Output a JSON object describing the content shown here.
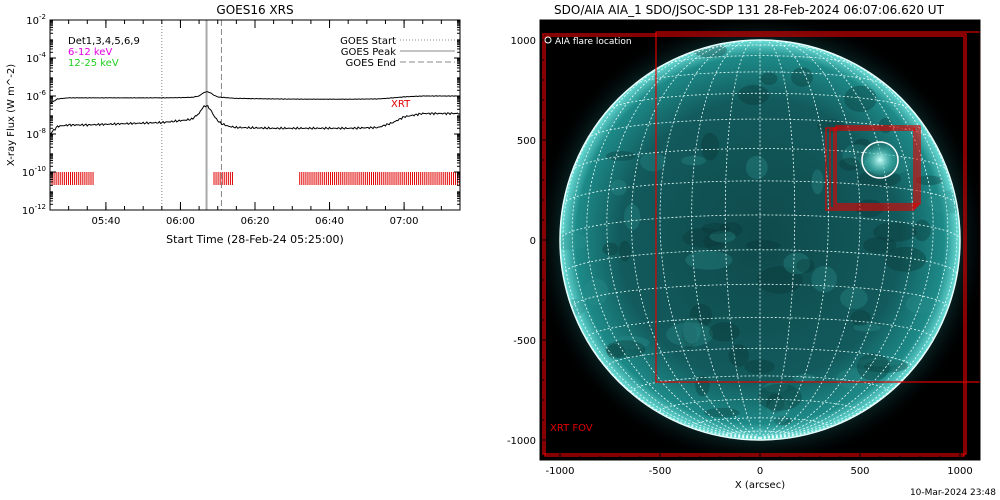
{
  "chart_data": [
    {
      "type": "line",
      "title": "GOES16 XRS",
      "xlabel": "Start Time (28-Feb-24 05:25:00)",
      "ylabel": "X-ray Flux (W m^-2)",
      "y_scale": "log",
      "ylim": [
        1e-12,
        0.01
      ],
      "xlim_minutes": [
        0,
        110
      ],
      "x_tick_labels": [
        "05:40",
        "06:00",
        "06:20",
        "06:40",
        "07:00"
      ],
      "y_tick_labels": [
        "10^-2",
        "10^-4",
        "10^-6",
        "10^-8",
        "10^-10",
        "10^-12"
      ],
      "legend_left": [
        "Det1,3,4,5,6,9",
        "6-12 keV",
        "12-25 keV"
      ],
      "legend_right": [
        "GOES Start",
        "GOES Peak",
        "GOES End"
      ],
      "xrt_label": "XRT",
      "goes_start": "05:55",
      "goes_peak": "06:07",
      "goes_end": "06:11",
      "series": [
        {
          "color": "#000000",
          "x_minutes": [
            0,
            2,
            5,
            10,
            20,
            30,
            35,
            38,
            40,
            41,
            42,
            43,
            44,
            45,
            46,
            50,
            60,
            70,
            80,
            88,
            92,
            95,
            100,
            110
          ],
          "values": [
            4e-07,
            7e-07,
            8e-07,
            8e-07,
            8e-07,
            8e-07,
            8.2e-07,
            8.5e-07,
            1e-06,
            1.4e-06,
            1.7e-06,
            1.5e-06,
            1.1e-06,
            9e-07,
            8.5e-07,
            7.5e-07,
            7e-07,
            6.8e-07,
            6.8e-07,
            7e-07,
            8e-07,
            9e-07,
            1e-06,
            1e-06
          ]
        },
        {
          "color": "#000000",
          "x_minutes": [
            0,
            2,
            5,
            10,
            20,
            30,
            35,
            38,
            40,
            41,
            42,
            43,
            44,
            45,
            46,
            48,
            50,
            60,
            70,
            80,
            88,
            92,
            95,
            100,
            110
          ],
          "values": [
            1e-08,
            2.5e-08,
            3e-08,
            3e-08,
            3.5e-08,
            4e-08,
            5e-08,
            6e-08,
            1.2e-07,
            2.5e-07,
            3.2e-07,
            2e-07,
            9e-08,
            5e-08,
            3.5e-08,
            2.5e-08,
            2.2e-08,
            2e-08,
            2e-08,
            2e-08,
            2.2e-08,
            4e-08,
            8e-08,
            1.2e-07,
            1.2e-07
          ]
        }
      ],
      "xrt_coverage_minutes": [
        [
          0,
          12
        ],
        [
          44,
          49
        ],
        [
          67,
          110
        ]
      ]
    },
    {
      "type": "image",
      "title": "SDO/AIA AIA_1 SDO/JSOC-SDP 131 28-Feb-2024 06:07:06.620 UT",
      "xlabel": "X (arcsec)",
      "xlim": [
        -1100,
        1100
      ],
      "ylim": [
        -1100,
        1100
      ],
      "x_tick_labels": [
        "-1000",
        "-500",
        "0",
        "500",
        "1000"
      ],
      "y_tick_labels": [
        "1000",
        "500",
        "0",
        "-500",
        "-1000"
      ],
      "legend": "AIA flare location",
      "fov_label": "XRT FOV",
      "flare_location": [
        600,
        400
      ]
    }
  ],
  "timestamp": "10-Mar-2024 23:48"
}
